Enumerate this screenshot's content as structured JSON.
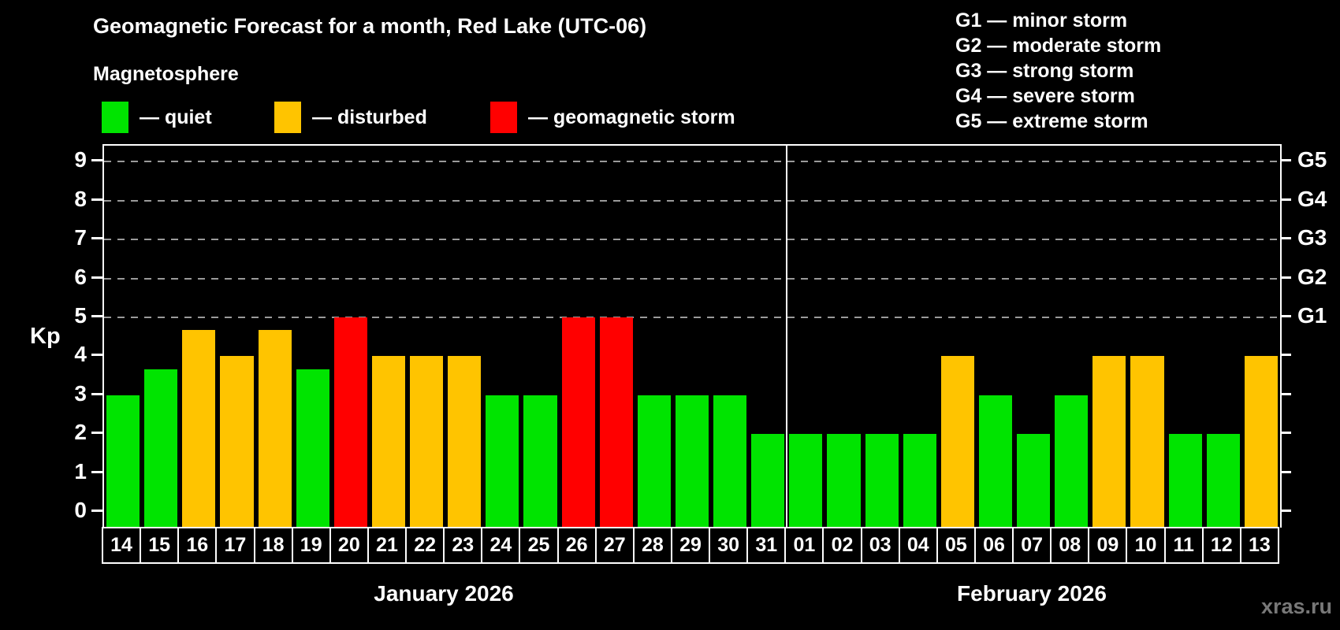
{
  "title": "Geomagnetic Forecast for a month, Red Lake (UTC-06)",
  "subtitle": "Magnetosphere",
  "legend": {
    "quiet": "— quiet",
    "disturbed": "— disturbed",
    "storm": "— geomagnetic storm"
  },
  "g_legend": [
    "G1 — minor storm",
    "G2 — moderate storm",
    "G3 — strong storm",
    "G4 — severe storm",
    "G5 — extreme storm"
  ],
  "watermark": "xras.ru",
  "colors": {
    "quiet": "#00e400",
    "disturbed": "#ffc400",
    "storm": "#ff0000",
    "grid": "#9a9a9a",
    "frame": "#ffffff"
  },
  "chart_data": {
    "type": "bar",
    "title": "Geomagnetic Forecast for a month, Red Lake (UTC-06)",
    "ylabel": "Kp",
    "ylim": [
      0,
      9
    ],
    "y_ticks": [
      0,
      1,
      2,
      3,
      4,
      5,
      6,
      7,
      8,
      9
    ],
    "gridlines_at": [
      5,
      6,
      7,
      8,
      9
    ],
    "grid": "dashed",
    "legend_position": "top",
    "right_axis": [
      {
        "kp": 5,
        "label": "G1"
      },
      {
        "kp": 6,
        "label": "G2"
      },
      {
        "kp": 7,
        "label": "G3"
      },
      {
        "kp": 8,
        "label": "G4"
      },
      {
        "kp": 9,
        "label": "G5"
      }
    ],
    "months": [
      {
        "label": "January 2026",
        "points": [
          {
            "day": "14",
            "kp": 3,
            "status": "quiet"
          },
          {
            "day": "15",
            "kp": 3.67,
            "status": "quiet"
          },
          {
            "day": "16",
            "kp": 4.67,
            "status": "disturbed"
          },
          {
            "day": "17",
            "kp": 4,
            "status": "disturbed"
          },
          {
            "day": "18",
            "kp": 4.67,
            "status": "disturbed"
          },
          {
            "day": "19",
            "kp": 3.67,
            "status": "quiet"
          },
          {
            "day": "20",
            "kp": 5,
            "status": "storm"
          },
          {
            "day": "21",
            "kp": 4,
            "status": "disturbed"
          },
          {
            "day": "22",
            "kp": 4,
            "status": "disturbed"
          },
          {
            "day": "23",
            "kp": 4,
            "status": "disturbed"
          },
          {
            "day": "24",
            "kp": 3,
            "status": "quiet"
          },
          {
            "day": "25",
            "kp": 3,
            "status": "quiet"
          },
          {
            "day": "26",
            "kp": 5,
            "status": "storm"
          },
          {
            "day": "27",
            "kp": 5,
            "status": "storm"
          },
          {
            "day": "28",
            "kp": 3,
            "status": "quiet"
          },
          {
            "day": "29",
            "kp": 3,
            "status": "quiet"
          },
          {
            "day": "30",
            "kp": 3,
            "status": "quiet"
          },
          {
            "day": "31",
            "kp": 2,
            "status": "quiet"
          }
        ]
      },
      {
        "label": "February 2026",
        "points": [
          {
            "day": "01",
            "kp": 2,
            "status": "quiet"
          },
          {
            "day": "02",
            "kp": 2,
            "status": "quiet"
          },
          {
            "day": "03",
            "kp": 2,
            "status": "quiet"
          },
          {
            "day": "04",
            "kp": 2,
            "status": "quiet"
          },
          {
            "day": "05",
            "kp": 4,
            "status": "disturbed"
          },
          {
            "day": "06",
            "kp": 3,
            "status": "quiet"
          },
          {
            "day": "07",
            "kp": 2,
            "status": "quiet"
          },
          {
            "day": "08",
            "kp": 3,
            "status": "quiet"
          },
          {
            "day": "09",
            "kp": 4,
            "status": "disturbed"
          },
          {
            "day": "10",
            "kp": 4,
            "status": "disturbed"
          },
          {
            "day": "11",
            "kp": 2,
            "status": "quiet"
          },
          {
            "day": "12",
            "kp": 2,
            "status": "quiet"
          },
          {
            "day": "13",
            "kp": 4,
            "status": "disturbed"
          }
        ]
      }
    ]
  }
}
